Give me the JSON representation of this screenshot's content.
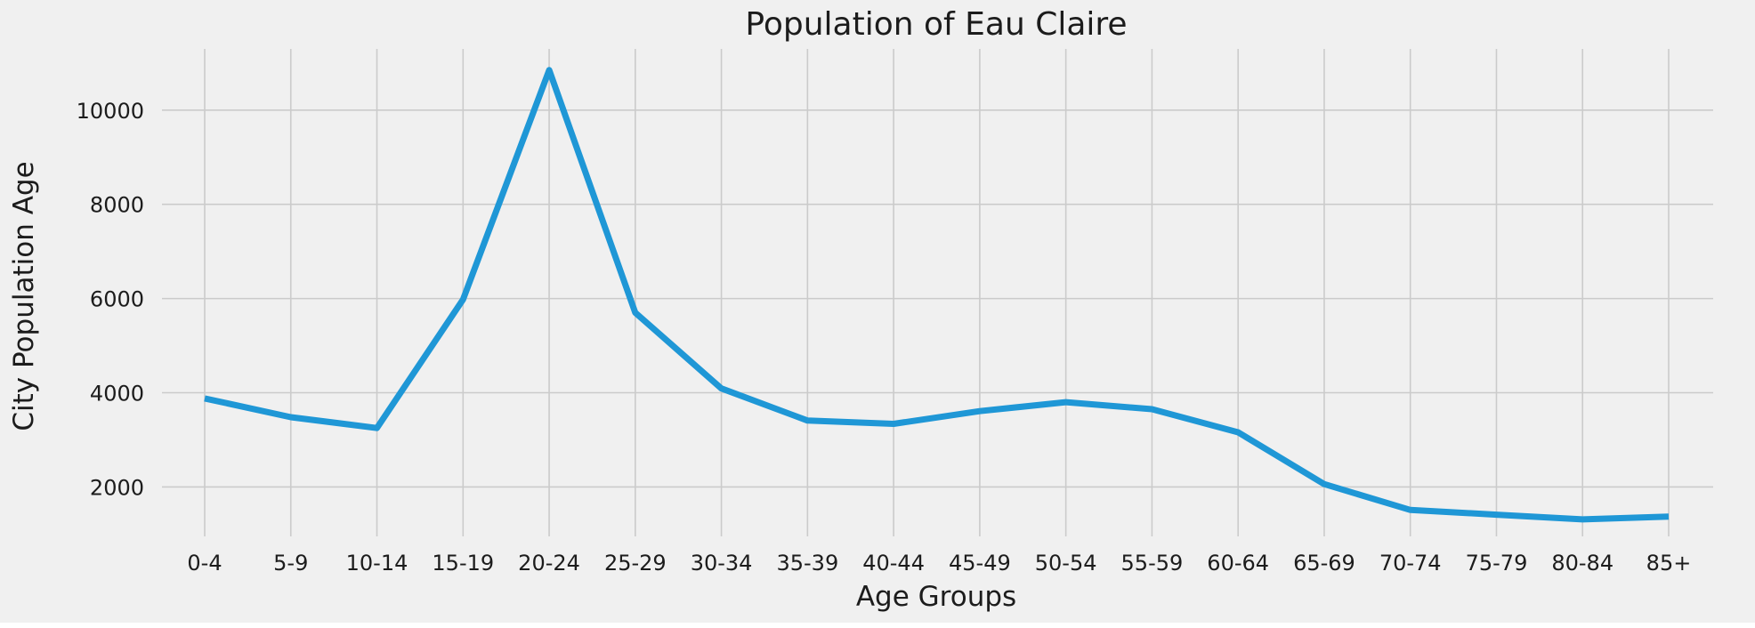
{
  "chart_data": {
    "type": "line",
    "title": "Population of Eau Claire",
    "xlabel": "Age Groups",
    "ylabel": "City Population Age",
    "categories": [
      "0-4",
      "5-9",
      "10-14",
      "15-19",
      "20-24",
      "25-29",
      "30-34",
      "35-39",
      "40-44",
      "45-49",
      "50-54",
      "55-59",
      "60-64",
      "65-69",
      "70-74",
      "75-79",
      "80-84",
      "85+"
    ],
    "series": [
      {
        "values": [
          3880,
          3480,
          3250,
          5980,
          10850,
          5700,
          4090,
          3410,
          3340,
          3610,
          3800,
          3650,
          3160,
          2060,
          1510,
          1410,
          1310,
          1370
        ],
        "color": "#1f97d6"
      }
    ],
    "yticks": [
      2000,
      4000,
      6000,
      8000,
      10000
    ],
    "ylim": [
      950,
      11300
    ],
    "grid": true,
    "background": "#f0f0f0"
  }
}
